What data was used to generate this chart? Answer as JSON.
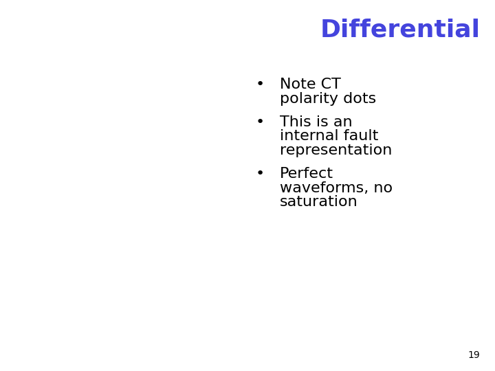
{
  "title": "Differential",
  "title_color": "#4444DD",
  "title_fontsize": 26,
  "title_bold": true,
  "bullet_points": [
    "Note CT\npolarity dots",
    "This is an\ninternal fault\nrepresentation",
    "Perfect\nwaveforms, no\nsaturation"
  ],
  "bullet_color": "#000000",
  "bullet_fontsize": 16,
  "bullet_symbol": "•",
  "page_number": "19",
  "page_number_fontsize": 10,
  "background_color": "#ffffff",
  "fig_width": 7.2,
  "fig_height": 5.4,
  "dpi": 100
}
